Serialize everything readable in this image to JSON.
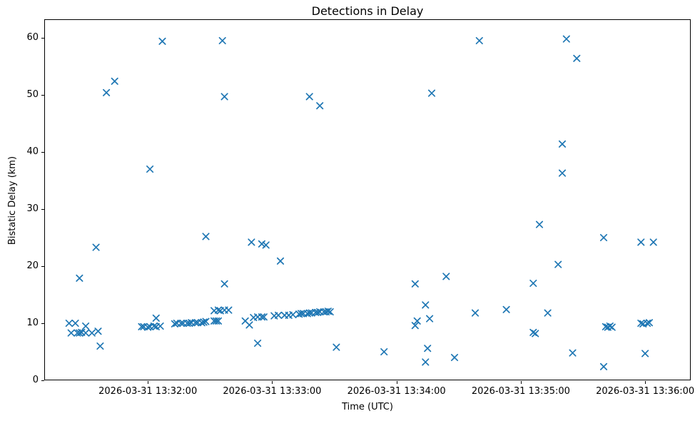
{
  "chart_data": {
    "type": "scatter",
    "title": "Detections in Delay",
    "xlabel": "Time (UTC)",
    "ylabel": "Bistatic Delay (km)",
    "marker": "x",
    "marker_color": "#1f77b4",
    "grid": false,
    "legend": "none",
    "date": "2026-03-31",
    "x_axis": {
      "start": "13:31:10",
      "end": "13:36:22",
      "ticks": [
        {
          "time": "13:32:00",
          "label": "2026-03-31 13:32:00"
        },
        {
          "time": "13:33:00",
          "label": "2026-03-31 13:33:00"
        },
        {
          "time": "13:34:00",
          "label": "2026-03-31 13:34:00"
        },
        {
          "time": "13:35:00",
          "label": "2026-03-31 13:35:00"
        },
        {
          "time": "13:36:00",
          "label": "2026-03-31 13:36:00"
        }
      ]
    },
    "y_axis": {
      "min": 0,
      "max": 63.25,
      "ticks": [
        0,
        10,
        20,
        30,
        40,
        50,
        60
      ]
    },
    "points": [
      [
        "13:31:22",
        10.0
      ],
      [
        "13:31:23",
        8.3
      ],
      [
        "13:31:25",
        10.0
      ],
      [
        "13:31:26",
        8.3
      ],
      [
        "13:31:27",
        17.9
      ],
      [
        "13:31:27",
        8.3
      ],
      [
        "13:31:28",
        8.4
      ],
      [
        "13:31:30",
        9.5
      ],
      [
        "13:31:30",
        8.3
      ],
      [
        "13:31:33",
        8.3
      ],
      [
        "13:31:35",
        23.3
      ],
      [
        "13:31:36",
        8.6
      ],
      [
        "13:31:37",
        6.0
      ],
      [
        "13:31:40",
        50.4
      ],
      [
        "13:31:44",
        52.4
      ],
      [
        "13:31:57",
        9.4
      ],
      [
        "13:31:58",
        9.4
      ],
      [
        "13:32:00",
        9.3
      ],
      [
        "13:32:01",
        9.4
      ],
      [
        "13:32:01",
        37.0
      ],
      [
        "13:32:03",
        9.5
      ],
      [
        "13:32:04",
        9.4
      ],
      [
        "13:32:04",
        10.9
      ],
      [
        "13:32:06",
        9.5
      ],
      [
        "13:32:07",
        59.4
      ],
      [
        "13:32:13",
        9.9
      ],
      [
        "13:32:14",
        10.0
      ],
      [
        "13:32:16",
        10.0
      ],
      [
        "13:32:17",
        10.0
      ],
      [
        "13:32:19",
        10.0
      ],
      [
        "13:32:20",
        10.0
      ],
      [
        "13:32:21",
        10.1
      ],
      [
        "13:32:23",
        10.1
      ],
      [
        "13:32:24",
        10.1
      ],
      [
        "13:32:26",
        10.1
      ],
      [
        "13:32:27",
        10.2
      ],
      [
        "13:32:28",
        25.2
      ],
      [
        "13:32:28",
        10.3
      ],
      [
        "13:32:32",
        10.4
      ],
      [
        "13:32:32",
        12.2
      ],
      [
        "13:32:33",
        10.4
      ],
      [
        "13:32:34",
        10.4
      ],
      [
        "13:32:34",
        12.3
      ],
      [
        "13:32:35",
        12.2
      ],
      [
        "13:32:36",
        59.5
      ],
      [
        "13:32:37",
        49.7
      ],
      [
        "13:32:37",
        16.9
      ],
      [
        "13:32:37",
        12.3
      ],
      [
        "13:32:39",
        12.3
      ],
      [
        "13:32:47",
        10.4
      ],
      [
        "13:32:49",
        9.7
      ],
      [
        "13:32:50",
        24.2
      ],
      [
        "13:32:51",
        11.0
      ],
      [
        "13:32:53",
        11.1
      ],
      [
        "13:32:53",
        6.5
      ],
      [
        "13:32:55",
        23.9
      ],
      [
        "13:32:55",
        11.1
      ],
      [
        "13:32:56",
        11.1
      ],
      [
        "13:32:57",
        23.7
      ],
      [
        "13:33:01",
        11.3
      ],
      [
        "13:33:03",
        11.4
      ],
      [
        "13:33:04",
        20.9
      ],
      [
        "13:33:06",
        11.4
      ],
      [
        "13:33:08",
        11.4
      ],
      [
        "13:33:10",
        11.5
      ],
      [
        "13:33:13",
        11.6
      ],
      [
        "13:33:14",
        11.7
      ],
      [
        "13:33:15",
        11.7
      ],
      [
        "13:33:17",
        11.7
      ],
      [
        "13:33:18",
        49.7
      ],
      [
        "13:33:18",
        11.8
      ],
      [
        "13:33:19",
        11.8
      ],
      [
        "13:33:21",
        11.9
      ],
      [
        "13:33:22",
        11.9
      ],
      [
        "13:33:23",
        48.1
      ],
      [
        "13:33:23",
        12.0
      ],
      [
        "13:33:25",
        12.0
      ],
      [
        "13:33:26",
        12.0
      ],
      [
        "13:33:27",
        12.1
      ],
      [
        "13:33:28",
        12.0
      ],
      [
        "13:33:31",
        5.8
      ],
      [
        "13:33:54",
        5.0
      ],
      [
        "13:34:09",
        16.9
      ],
      [
        "13:34:09",
        9.6
      ],
      [
        "13:34:10",
        10.4
      ],
      [
        "13:34:14",
        13.2
      ],
      [
        "13:34:14",
        3.2
      ],
      [
        "13:34:15",
        5.6
      ],
      [
        "13:34:16",
        10.8
      ],
      [
        "13:34:17",
        50.3
      ],
      [
        "13:34:24",
        18.2
      ],
      [
        "13:34:28",
        4.0
      ],
      [
        "13:34:38",
        11.8
      ],
      [
        "13:34:40",
        59.5
      ],
      [
        "13:34:53",
        12.4
      ],
      [
        "13:35:06",
        17.0
      ],
      [
        "13:35:06",
        8.4
      ],
      [
        "13:35:07",
        8.2
      ],
      [
        "13:35:09",
        27.3
      ],
      [
        "13:35:13",
        11.8
      ],
      [
        "13:35:18",
        20.3
      ],
      [
        "13:35:20",
        41.4
      ],
      [
        "13:35:20",
        36.3
      ],
      [
        "13:35:22",
        59.8
      ],
      [
        "13:35:25",
        4.8
      ],
      [
        "13:35:27",
        56.4
      ],
      [
        "13:35:40",
        25.0
      ],
      [
        "13:35:40",
        2.4
      ],
      [
        "13:35:41",
        9.4
      ],
      [
        "13:35:42",
        9.3
      ],
      [
        "13:35:43",
        9.5
      ],
      [
        "13:35:44",
        9.3
      ],
      [
        "13:35:58",
        24.2
      ],
      [
        "13:35:58",
        10.0
      ],
      [
        "13:35:59",
        9.9
      ],
      [
        "13:36:00",
        4.7
      ],
      [
        "13:36:01",
        10.0
      ],
      [
        "13:36:02",
        10.1
      ],
      [
        "13:36:04",
        24.2
      ]
    ]
  }
}
